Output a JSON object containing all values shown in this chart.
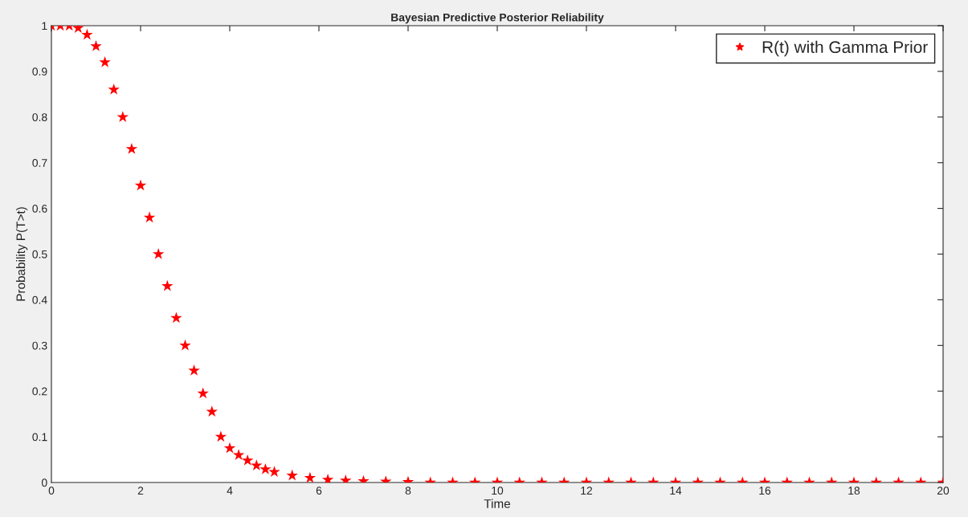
{
  "chart_data": {
    "type": "scatter",
    "title": "Bayesian Predictive Posterior Reliability",
    "xlabel": "Time",
    "ylabel": "Probability P(T>t)",
    "series": [
      {
        "name": "R(t) with Gamma Prior",
        "color": "#ff0000",
        "x": [
          0,
          0.2,
          0.4,
          0.6,
          0.8,
          1.0,
          1.2,
          1.4,
          1.6,
          1.8,
          2.0,
          2.2,
          2.4,
          2.6,
          2.8,
          3.0,
          3.2,
          3.4,
          3.6,
          3.8,
          4.0,
          4.2,
          4.4,
          4.6,
          4.8,
          5.0,
          5.4,
          5.8,
          6.2,
          6.6,
          7,
          7.5,
          8,
          8.5,
          9,
          9.5,
          10,
          10.5,
          11,
          11.5,
          12,
          12.5,
          13,
          13.5,
          14,
          14.5,
          15,
          15.5,
          16,
          16.5,
          17,
          17.5,
          18,
          18.5,
          19,
          19.5,
          20
        ],
        "values": [
          1,
          1,
          1,
          0.995,
          0.98,
          0.955,
          0.92,
          0.86,
          0.8,
          0.73,
          0.65,
          0.58,
          0.5,
          0.43,
          0.36,
          0.3,
          0.245,
          0.195,
          0.155,
          0.1,
          0.075,
          0.06,
          0.048,
          0.037,
          0.029,
          0.023,
          0.015,
          0.01,
          0.006,
          0.004,
          0.003,
          0.002,
          0.001,
          0,
          0,
          0,
          0,
          0,
          0,
          0,
          0,
          0,
          0,
          0,
          0,
          0,
          0,
          0,
          0,
          0,
          0,
          0,
          0,
          0,
          0,
          0,
          0
        ]
      }
    ],
    "xlim": [
      0,
      20
    ],
    "xticks": [
      0,
      2,
      4,
      6,
      8,
      10,
      12,
      14,
      16,
      18,
      20
    ],
    "ylim": [
      0,
      1
    ],
    "yticks": [
      0,
      0.1,
      0.2,
      0.3,
      0.4,
      0.5,
      0.6,
      0.7,
      0.8,
      0.9,
      1
    ],
    "marker": "star",
    "grid": false,
    "legend": "top right"
  }
}
